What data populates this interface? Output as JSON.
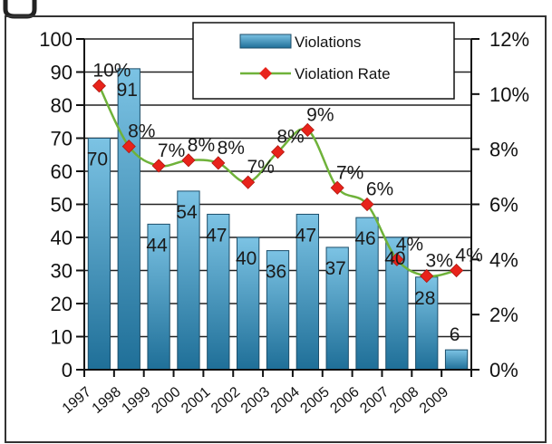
{
  "chart_data": {
    "type": "bar",
    "categories": [
      "1997",
      "1998",
      "1999",
      "2000",
      "2001",
      "2002",
      "2003",
      "2004",
      "2005",
      "2006",
      "2007",
      "2008",
      "2009"
    ],
    "series": [
      {
        "name": "Violations",
        "type": "bar",
        "axis": "left",
        "values": [
          70,
          91,
          44,
          54,
          47,
          40,
          36,
          47,
          37,
          46,
          40,
          28,
          6
        ],
        "labels": [
          "70",
          "91",
          "44",
          "54",
          "47",
          "40",
          "36",
          "47",
          "37",
          "46",
          "40",
          "28",
          "6"
        ]
      },
      {
        "name": "Violation Rate",
        "type": "line",
        "axis": "right",
        "values": [
          10.3,
          8.1,
          7.4,
          7.6,
          7.5,
          6.8,
          7.9,
          8.7,
          6.6,
          6.0,
          4.0,
          3.4,
          3.6
        ],
        "labels": [
          "10%",
          "8%",
          "7%",
          "8%",
          "8%",
          "7%",
          "8%",
          "9%",
          "7%",
          "6%",
          "4%",
          "3%",
          "4%"
        ]
      }
    ],
    "y_left": {
      "min": 0,
      "max": 100,
      "ticks": [
        "0",
        "10",
        "20",
        "30",
        "40",
        "50",
        "60",
        "70",
        "80",
        "90",
        "100"
      ]
    },
    "y_right": {
      "min": 0,
      "max": 12,
      "ticks": [
        "0%",
        "2%",
        "4%",
        "6%",
        "8%",
        "10%",
        "12%"
      ]
    },
    "grid": true,
    "legend": {
      "placement": "top-right",
      "entries": [
        "Violations",
        "Violation Rate"
      ]
    },
    "colors": {
      "bar_light": "#7cc3e4",
      "bar_dark": "#1f6f98",
      "bar_edge": "#1c4e6a",
      "line": "#6fb23a",
      "marker": "#e8231b",
      "grid": "#222222"
    }
  }
}
